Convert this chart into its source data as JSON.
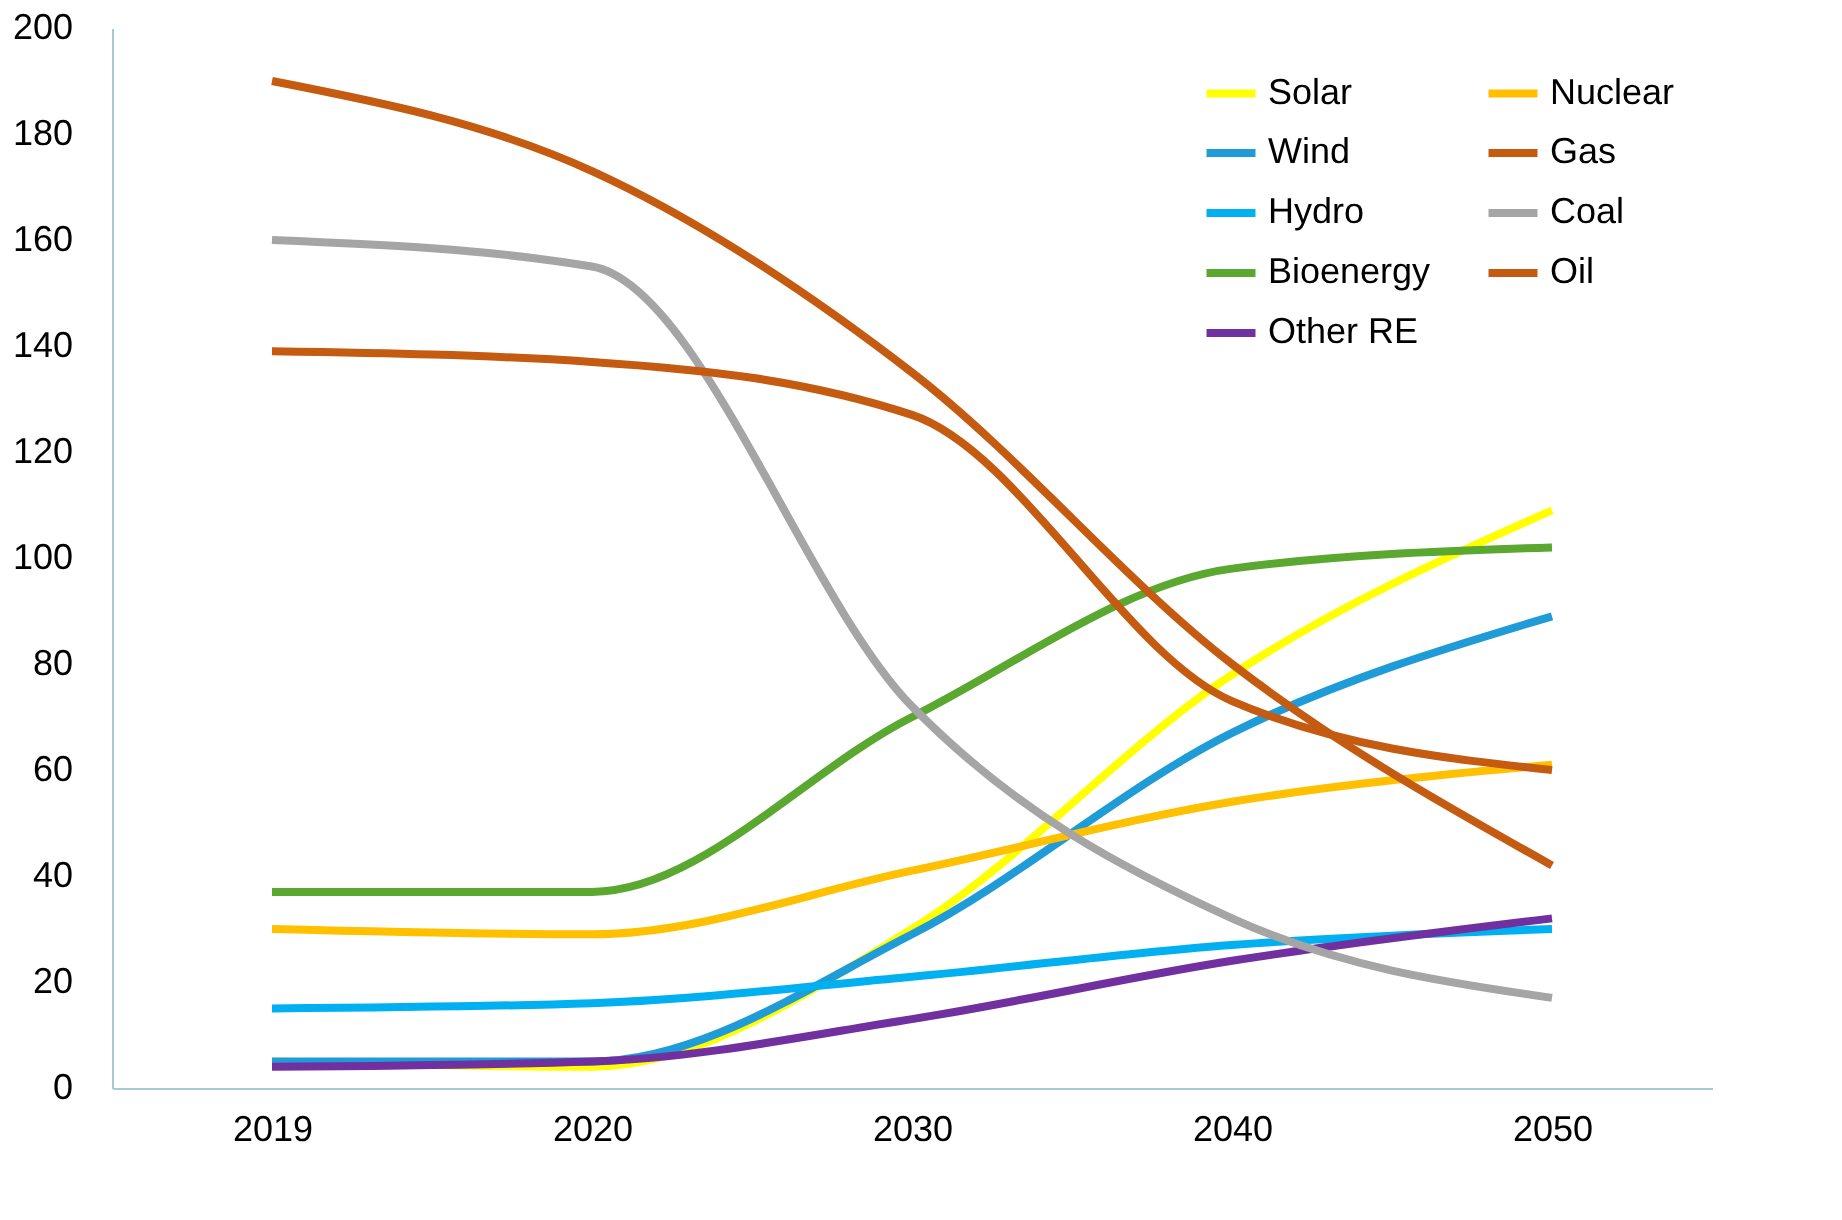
{
  "chart_data": {
    "type": "line",
    "categories": [
      "2019",
      "2020",
      "2030",
      "2040",
      "2050"
    ],
    "series": [
      {
        "name": "Solar",
        "color": "#ffff00",
        "values": [
          5,
          4,
          30,
          78,
          109
        ]
      },
      {
        "name": "Wind",
        "color": "#1f9bd7",
        "values": [
          5,
          5,
          29,
          67,
          89
        ]
      },
      {
        "name": "Hydro",
        "color": "#00b0f0",
        "values": [
          15,
          16,
          21,
          27,
          30
        ]
      },
      {
        "name": "Bioenergy",
        "color": "#5aa830",
        "values": [
          37,
          37,
          70,
          98,
          102
        ]
      },
      {
        "name": "Other RE",
        "color": "#7030a0",
        "values": [
          4,
          5,
          13,
          24,
          32
        ]
      },
      {
        "name": "Nuclear",
        "color": "#ffc000",
        "values": [
          30,
          29,
          41,
          54,
          61
        ]
      },
      {
        "name": "Gas",
        "color": "#c55a11",
        "values": [
          190,
          173,
          135,
          80,
          42
        ]
      },
      {
        "name": "Coal",
        "color": "#a5a5a5",
        "values": [
          160,
          155,
          72,
          32,
          17
        ]
      },
      {
        "name": "Oil",
        "color": "#c55a11",
        "values": [
          139,
          137,
          127,
          73,
          60
        ]
      }
    ],
    "ylim": [
      0,
      200
    ],
    "yticks": [
      0,
      20,
      40,
      60,
      80,
      100,
      120,
      140,
      160,
      180,
      200
    ],
    "grid": false,
    "legend": "top right",
    "marker": "none",
    "line_style": "solid"
  }
}
